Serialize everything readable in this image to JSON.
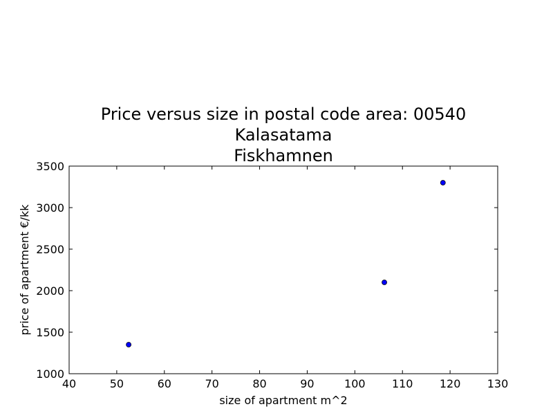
{
  "chart_data": {
    "type": "scatter",
    "title_lines": [
      "Price versus size in postal code area: 00540",
      "Kalasatama",
      "Fiskhamnen"
    ],
    "xlabel": "size of apartment m^2",
    "ylabel": "price of apartment €/kk",
    "xlim": [
      40,
      130
    ],
    "ylim": [
      1000,
      3500
    ],
    "xticks": [
      40,
      50,
      60,
      70,
      80,
      90,
      100,
      110,
      120,
      130
    ],
    "yticks": [
      1000,
      1500,
      2000,
      2500,
      3000,
      3500
    ],
    "grid": false,
    "points": [
      {
        "x": 52.5,
        "y": 1350
      },
      {
        "x": 106.2,
        "y": 2100
      },
      {
        "x": 118.5,
        "y": 3300
      }
    ],
    "colors": {
      "marker_fill": "#0000ff",
      "marker_edge": "#000000",
      "axes": "#000000",
      "background": "#ffffff"
    }
  }
}
